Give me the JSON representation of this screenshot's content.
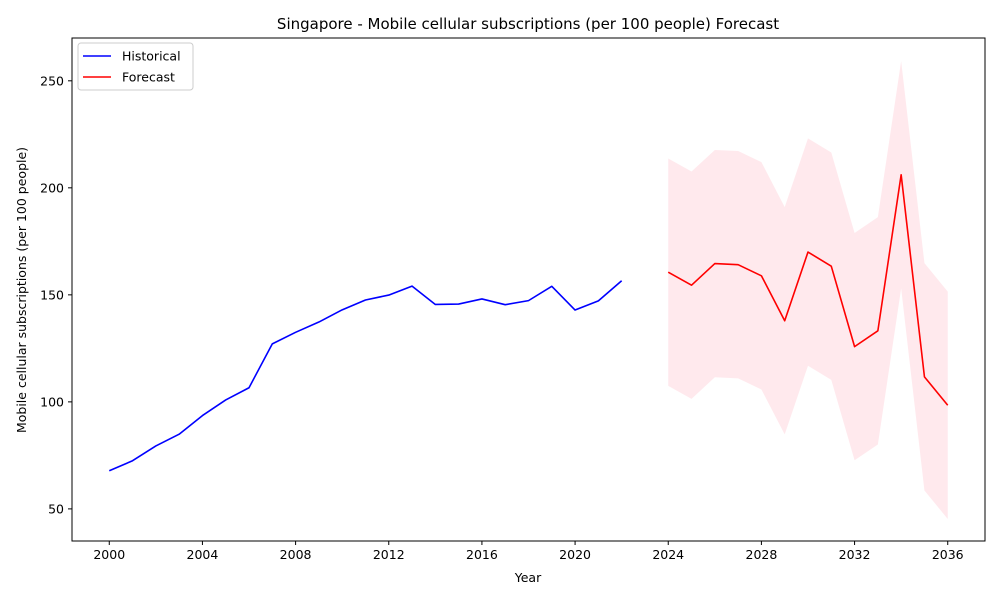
{
  "chart_data": {
    "type": "line",
    "title": "Singapore - Mobile cellular subscriptions (per 100 people) Forecast",
    "xlabel": "Year",
    "ylabel": "Mobile cellular subscriptions (per 100 people)",
    "xlim": [
      1998.4,
      2037.6
    ],
    "ylim": [
      35,
      270
    ],
    "x_ticks": [
      2000,
      2004,
      2008,
      2012,
      2016,
      2020,
      2024,
      2028,
      2032,
      2036
    ],
    "y_ticks": [
      50,
      100,
      150,
      200,
      250
    ],
    "grid": false,
    "legend_position": "top-left",
    "series": [
      {
        "name": "Historical",
        "color": "#0000ff",
        "x": [
          2000,
          2001,
          2002,
          2003,
          2004,
          2005,
          2006,
          2007,
          2008,
          2009,
          2010,
          2011,
          2012,
          2013,
          2014,
          2015,
          2016,
          2017,
          2018,
          2019,
          2020,
          2021,
          2022
        ],
        "values": [
          67.8,
          72.5,
          79.4,
          84.9,
          93.6,
          100.9,
          106.6,
          127.1,
          132.5,
          137.3,
          143.0,
          147.6,
          149.9,
          154.1,
          145.5,
          145.7,
          148.1,
          145.4,
          147.3,
          154.0,
          142.9,
          147.2,
          156.6
        ]
      },
      {
        "name": "Forecast",
        "color": "#ff0000",
        "x": [
          2024,
          2025,
          2026,
          2027,
          2028,
          2029,
          2030,
          2031,
          2032,
          2033,
          2034,
          2035,
          2036
        ],
        "values": [
          160.6,
          154.5,
          164.6,
          164.1,
          158.9,
          137.9,
          170.0,
          163.4,
          125.8,
          133.2,
          206.1,
          111.7,
          98.4
        ]
      }
    ],
    "confidence_band": {
      "color": "#ffc0cb",
      "opacity": 0.35,
      "x": [
        2024,
        2025,
        2026,
        2027,
        2028,
        2029,
        2030,
        2031,
        2032,
        2033,
        2034,
        2035,
        2036
      ],
      "lower": [
        107.5,
        101.4,
        111.5,
        111.0,
        105.8,
        84.8,
        116.9,
        110.3,
        72.7,
        80.1,
        153.0,
        58.6,
        45.3
      ],
      "upper": [
        213.7,
        207.6,
        217.7,
        217.2,
        212.0,
        191.0,
        223.1,
        216.5,
        178.9,
        186.3,
        259.2,
        164.8,
        151.5
      ]
    }
  }
}
